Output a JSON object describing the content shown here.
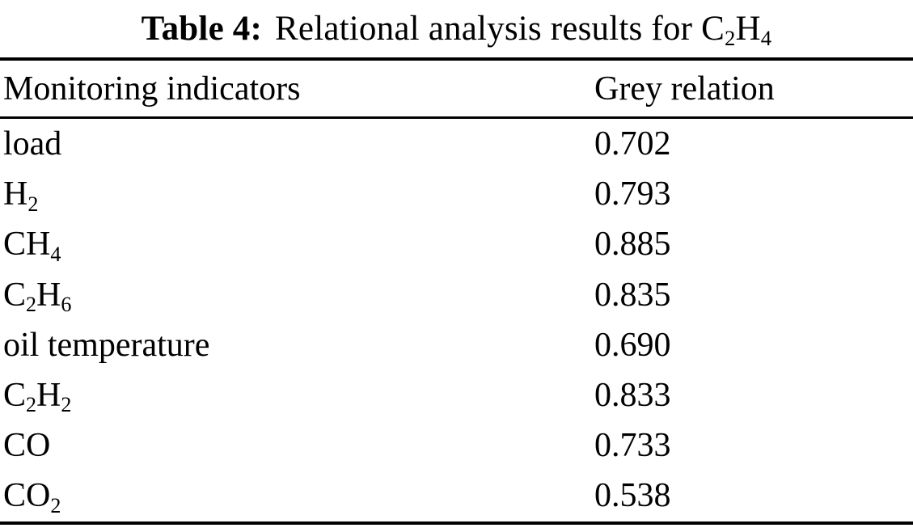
{
  "page": {
    "background_color": "#ffffff",
    "text_color": "#000000"
  },
  "table": {
    "caption": {
      "label": "Table 4:",
      "text": "Relational analysis results for C_2H_4"
    },
    "columns": [
      {
        "label": "Monitoring indicators"
      },
      {
        "label": "Grey relation"
      }
    ],
    "rows": [
      {
        "indicator": "load",
        "value": "0.702"
      },
      {
        "indicator": "H_2",
        "value": "0.793"
      },
      {
        "indicator": "CH_4",
        "value": "0.885"
      },
      {
        "indicator": "C_2H_6",
        "value": "0.835"
      },
      {
        "indicator": "oil temperature",
        "value": "0.690"
      },
      {
        "indicator": "C_2H_2",
        "value": "0.833"
      },
      {
        "indicator": "CO",
        "value": "0.733"
      },
      {
        "indicator": "CO_2",
        "value": "0.538"
      }
    ]
  },
  "chart_data": {
    "type": "table",
    "title": "Table 4: Relational analysis results for C2H4",
    "columns": [
      "Monitoring indicators",
      "Grey relation"
    ],
    "categories": [
      "load",
      "H2",
      "CH4",
      "C2H6",
      "oil temperature",
      "C2H2",
      "CO",
      "CO2"
    ],
    "values": [
      0.702,
      0.793,
      0.885,
      0.835,
      0.69,
      0.833,
      0.733,
      0.538
    ]
  }
}
